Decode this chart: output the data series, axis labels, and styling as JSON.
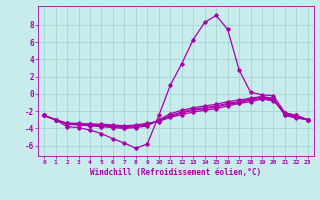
{
  "xlabel": "Windchill (Refroidissement éolien,°C)",
  "bg_color": "#c8ecec",
  "grid_color": "#a8d8d8",
  "line_color": "#aa00aa",
  "xlim": [
    -0.5,
    23.5
  ],
  "ylim": [
    -7.2,
    10.2
  ],
  "xticks": [
    0,
    1,
    2,
    3,
    4,
    5,
    6,
    7,
    8,
    9,
    10,
    11,
    12,
    13,
    14,
    15,
    16,
    17,
    18,
    19,
    20,
    21,
    22,
    23
  ],
  "yticks": [
    -6,
    -4,
    -2,
    0,
    2,
    4,
    6,
    8
  ],
  "lines": [
    {
      "x": [
        0,
        1,
        2,
        3,
        4,
        5,
        6,
        7,
        8,
        9,
        10,
        11,
        12,
        13,
        14,
        15,
        16,
        17,
        18,
        19,
        20,
        21,
        22,
        23
      ],
      "y": [
        -2.5,
        -3.0,
        -3.8,
        -3.9,
        -4.2,
        -4.6,
        -5.2,
        -5.7,
        -6.3,
        -5.8,
        -2.5,
        1.0,
        3.5,
        6.3,
        8.3,
        9.1,
        7.5,
        2.8,
        0.2,
        -0.1,
        -0.2,
        -2.2,
        -2.5,
        -3.0
      ]
    },
    {
      "x": [
        0,
        1,
        2,
        3,
        4,
        5,
        6,
        7,
        8,
        9,
        10,
        11,
        12,
        13,
        14,
        15,
        16,
        17,
        18,
        19,
        20,
        21,
        22,
        23
      ],
      "y": [
        -2.5,
        -3.0,
        -3.5,
        -3.6,
        -3.7,
        -3.8,
        -3.9,
        -4.0,
        -3.9,
        -3.7,
        -3.0,
        -2.3,
        -1.9,
        -1.6,
        -1.4,
        -1.2,
        -0.9,
        -0.7,
        -0.5,
        -0.3,
        -0.5,
        -2.5,
        -2.8,
        -3.0
      ]
    },
    {
      "x": [
        0,
        1,
        2,
        3,
        4,
        5,
        6,
        7,
        8,
        9,
        10,
        11,
        12,
        13,
        14,
        15,
        16,
        17,
        18,
        19,
        20,
        21,
        22,
        23
      ],
      "y": [
        -2.5,
        -3.0,
        -3.5,
        -3.5,
        -3.6,
        -3.7,
        -3.8,
        -3.9,
        -3.8,
        -3.6,
        -3.1,
        -2.5,
        -2.1,
        -1.8,
        -1.6,
        -1.4,
        -1.1,
        -0.9,
        -0.6,
        -0.4,
        -0.6,
        -2.4,
        -2.7,
        -3.0
      ]
    },
    {
      "x": [
        0,
        1,
        2,
        3,
        4,
        5,
        6,
        7,
        8,
        9,
        10,
        11,
        12,
        13,
        14,
        15,
        16,
        17,
        18,
        19,
        20,
        21,
        22,
        23
      ],
      "y": [
        -2.5,
        -3.0,
        -3.4,
        -3.5,
        -3.5,
        -3.6,
        -3.7,
        -3.8,
        -3.7,
        -3.5,
        -3.1,
        -2.6,
        -2.2,
        -1.9,
        -1.7,
        -1.5,
        -1.2,
        -1.0,
        -0.7,
        -0.5,
        -0.7,
        -2.3,
        -2.6,
        -3.0
      ]
    },
    {
      "x": [
        0,
        1,
        2,
        3,
        4,
        5,
        6,
        7,
        8,
        9,
        10,
        11,
        12,
        13,
        14,
        15,
        16,
        17,
        18,
        19,
        20,
        21,
        22,
        23
      ],
      "y": [
        -2.5,
        -3.0,
        -3.4,
        -3.4,
        -3.5,
        -3.5,
        -3.6,
        -3.7,
        -3.6,
        -3.4,
        -3.2,
        -2.7,
        -2.4,
        -2.1,
        -1.9,
        -1.7,
        -1.4,
        -1.1,
        -0.9,
        -0.6,
        -0.8,
        -2.2,
        -2.5,
        -3.0
      ]
    }
  ]
}
